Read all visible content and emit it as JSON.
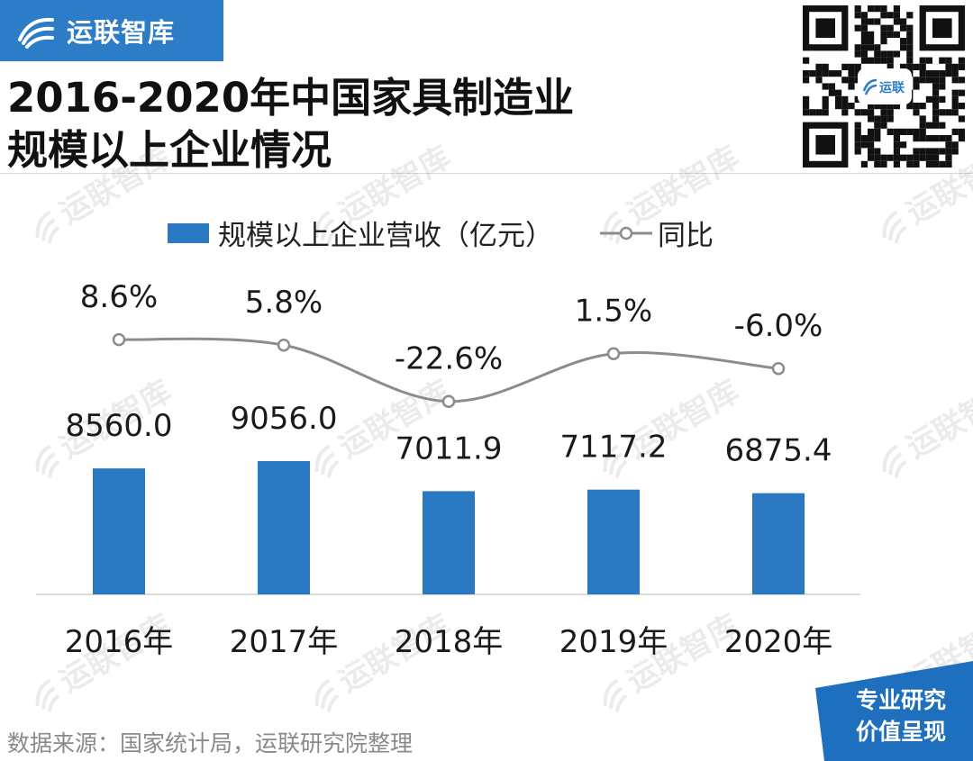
{
  "brand": {
    "name": "运联智库",
    "logo_icon": "wing-swirl-icon"
  },
  "title": {
    "line1": "2016-2020年中国家具制造业",
    "line2": "规模以上企业情况"
  },
  "qr": {
    "center_label": "运联"
  },
  "legend": {
    "bar_label": "规模以上企业营收（亿元）",
    "line_label": "同比"
  },
  "chart_data": {
    "type": "bar",
    "categories": [
      "2016年",
      "2017年",
      "2018年",
      "2019年",
      "2020年"
    ],
    "series": [
      {
        "name": "规模以上企业营收（亿元）",
        "type": "bar",
        "values": [
          8560.0,
          9056.0,
          7011.9,
          7117.2,
          6875.4
        ],
        "labels": [
          "8560.0",
          "9056.0",
          "7011.9",
          "7117.2",
          "6875.4"
        ],
        "color": "#2a78c2"
      },
      {
        "name": "同比",
        "type": "line",
        "values": [
          8.6,
          5.8,
          -22.6,
          1.5,
          -6.0
        ],
        "labels": [
          "8.6%",
          "5.8%",
          "-22.6%",
          "1.5%",
          "-6.0%"
        ],
        "color": "#8c8c8c"
      }
    ],
    "legend_position": "top",
    "grid": false
  },
  "watermark_text": "运联智库",
  "footer": {
    "source": "数据来源：国家统计局，运联研究院整理"
  },
  "badge": {
    "line1": "专业研究",
    "line2": "价值呈现",
    "color": "#1f6fbf"
  }
}
